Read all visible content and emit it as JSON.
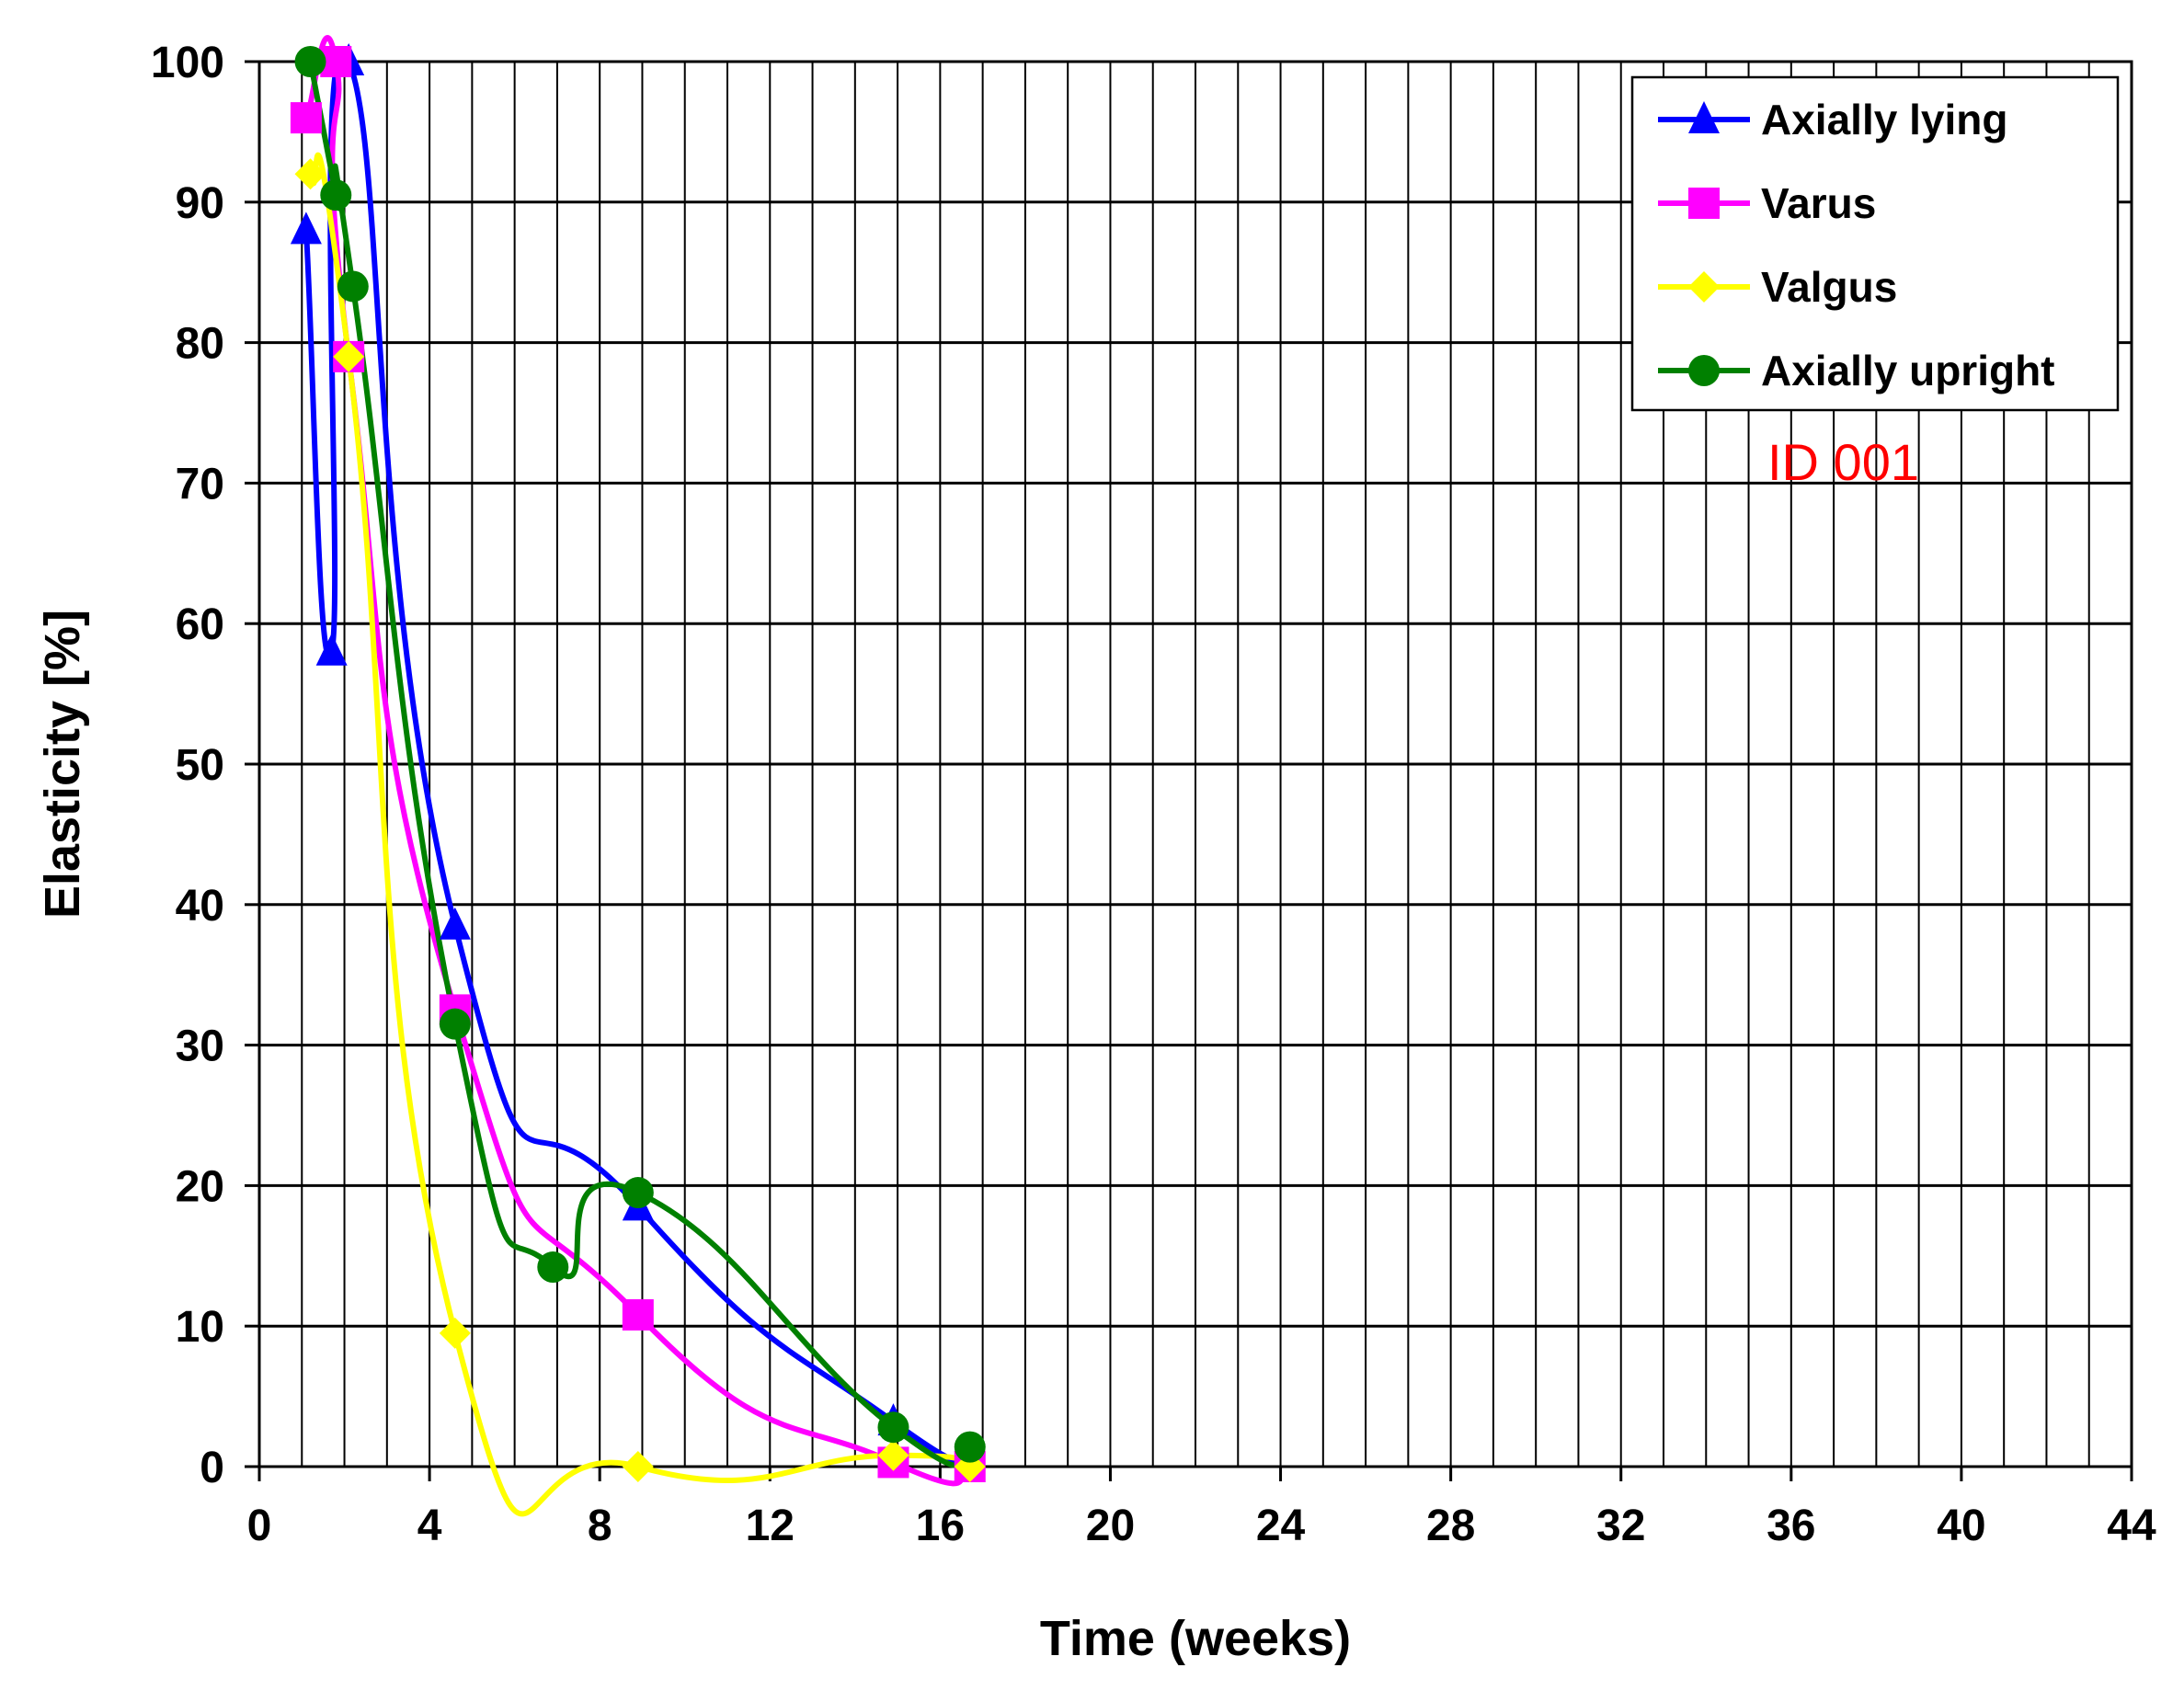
{
  "chart_data": {
    "type": "line",
    "title": "",
    "xlabel": "Time (weeks)",
    "ylabel": "Elasticity [%]",
    "xlim": [
      0,
      44
    ],
    "ylim": [
      0,
      100
    ],
    "x_minor_step": 1,
    "x_major_step": 4,
    "y_step": 10,
    "grid": true,
    "legend_position": "top-right",
    "annotation": "ID 001",
    "series": [
      {
        "name": "Axially lying",
        "color": "#0000ff",
        "marker": "triangle",
        "x": [
          1.1,
          1.7,
          2.1,
          4.6,
          8.9,
          14.9,
          16.7
        ],
        "y": [
          88,
          58,
          100,
          38.5,
          18.5,
          3.2,
          1.2
        ]
      },
      {
        "name": "Varus",
        "color": "#ff00ff",
        "marker": "square",
        "x": [
          1.1,
          1.8,
          2.1,
          4.6,
          8.9,
          14.9,
          16.7
        ],
        "y": [
          96,
          100,
          79,
          32.5,
          10.8,
          0.3,
          0
        ]
      },
      {
        "name": "Valgus",
        "color": "#ffff00",
        "marker": "diamond",
        "x": [
          1.2,
          2.1,
          4.6,
          8.9,
          14.9,
          16.7
        ],
        "y": [
          92,
          79,
          9.5,
          0,
          0.8,
          0
        ]
      },
      {
        "name": "Axially upright",
        "color": "#008000",
        "marker": "circle",
        "x": [
          1.2,
          1.8,
          2.2,
          4.6,
          6.9,
          8.9,
          14.9,
          16.7
        ],
        "y": [
          100,
          90.5,
          84,
          31.5,
          14.2,
          19.5,
          2.8,
          1.4
        ]
      }
    ],
    "x_ticks": [
      "0",
      "4",
      "8",
      "12",
      "16",
      "20",
      "24",
      "28",
      "32",
      "36",
      "40",
      "44"
    ],
    "y_ticks": [
      "0",
      "10",
      "20",
      "30",
      "40",
      "50",
      "60",
      "70",
      "80",
      "90",
      "100"
    ]
  }
}
